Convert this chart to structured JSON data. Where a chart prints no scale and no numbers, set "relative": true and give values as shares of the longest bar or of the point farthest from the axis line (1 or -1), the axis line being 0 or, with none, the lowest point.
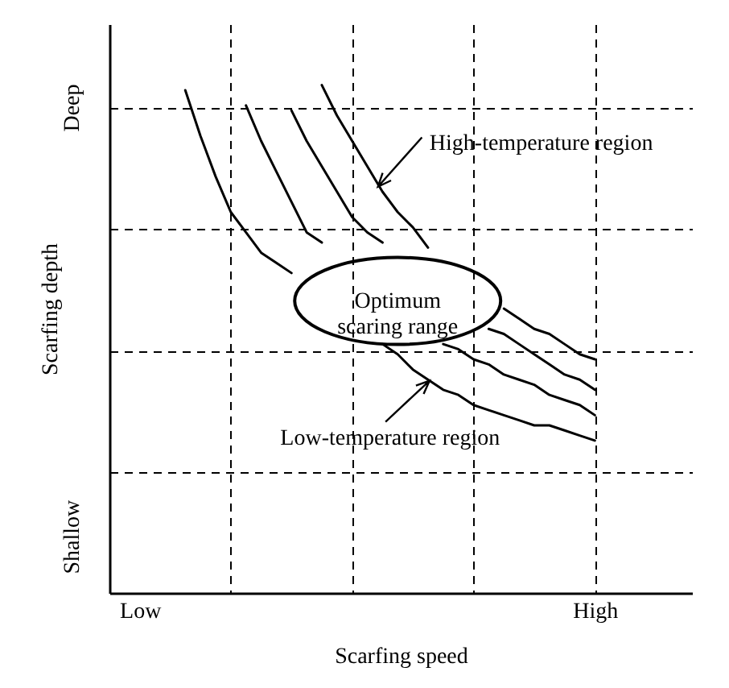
{
  "chart_data": {
    "type": "line",
    "relative": true,
    "xlabel": "Scarfing speed",
    "ylabel": "Scarfing depth",
    "categories": [
      null,
      null,
      "Low",
      null,
      null,
      null,
      null,
      null,
      null,
      null,
      null,
      null,
      null,
      null,
      null,
      null,
      null,
      null,
      null,
      null,
      null,
      null,
      null,
      null,
      null,
      null,
      null,
      null,
      null,
      null,
      null,
      null,
      "High",
      null,
      null,
      null,
      null,
      null,
      null
    ],
    "grid": true,
    "legend": false,
    "marker": "none",
    "line_style": "solid",
    "series": [
      {
        "color": "#000000",
        "values": [
          null,
          null,
          null,
          null,
          null,
          0.99,
          0.9,
          0.82,
          0.75,
          0.71,
          0.67,
          0.65,
          0.63,
          null,
          null,
          null,
          null,
          null,
          0.49,
          0.47,
          0.44,
          0.42,
          0.4,
          0.39,
          0.37,
          0.36,
          0.35,
          0.34,
          0.33,
          0.33,
          0.32,
          0.31,
          0.3,
          null,
          null,
          null,
          null,
          null,
          null
        ]
      },
      {
        "color": "#000000",
        "values": [
          null,
          null,
          null,
          null,
          null,
          null,
          null,
          null,
          null,
          0.96,
          0.89,
          0.83,
          0.77,
          0.71,
          0.69,
          null,
          null,
          null,
          null,
          null,
          null,
          null,
          0.49,
          0.48,
          0.46,
          0.45,
          0.43,
          0.42,
          0.41,
          0.39,
          0.38,
          0.37,
          0.35,
          null,
          null,
          null,
          null,
          null,
          null
        ]
      },
      {
        "color": "#000000",
        "values": [
          null,
          null,
          null,
          null,
          null,
          null,
          null,
          null,
          null,
          null,
          null,
          null,
          0.95,
          0.89,
          0.84,
          0.79,
          0.74,
          0.71,
          0.69,
          null,
          null,
          null,
          null,
          null,
          null,
          0.52,
          0.51,
          0.49,
          0.47,
          0.45,
          0.43,
          0.42,
          0.4,
          null,
          null,
          null,
          null,
          null,
          null
        ]
      },
      {
        "color": "#000000",
        "values": [
          null,
          null,
          null,
          null,
          null,
          null,
          null,
          null,
          null,
          null,
          null,
          null,
          null,
          null,
          1.0,
          0.94,
          0.89,
          0.84,
          0.79,
          0.75,
          0.72,
          0.68,
          null,
          null,
          null,
          null,
          0.56,
          0.54,
          0.52,
          0.51,
          0.49,
          0.47,
          0.46,
          null,
          null,
          null,
          null,
          null,
          null
        ]
      }
    ],
    "annotations": [
      "High-temperature region",
      "Low-temperature region",
      "Optimum\nscaring range",
      "Shallow",
      "Deep"
    ]
  }
}
